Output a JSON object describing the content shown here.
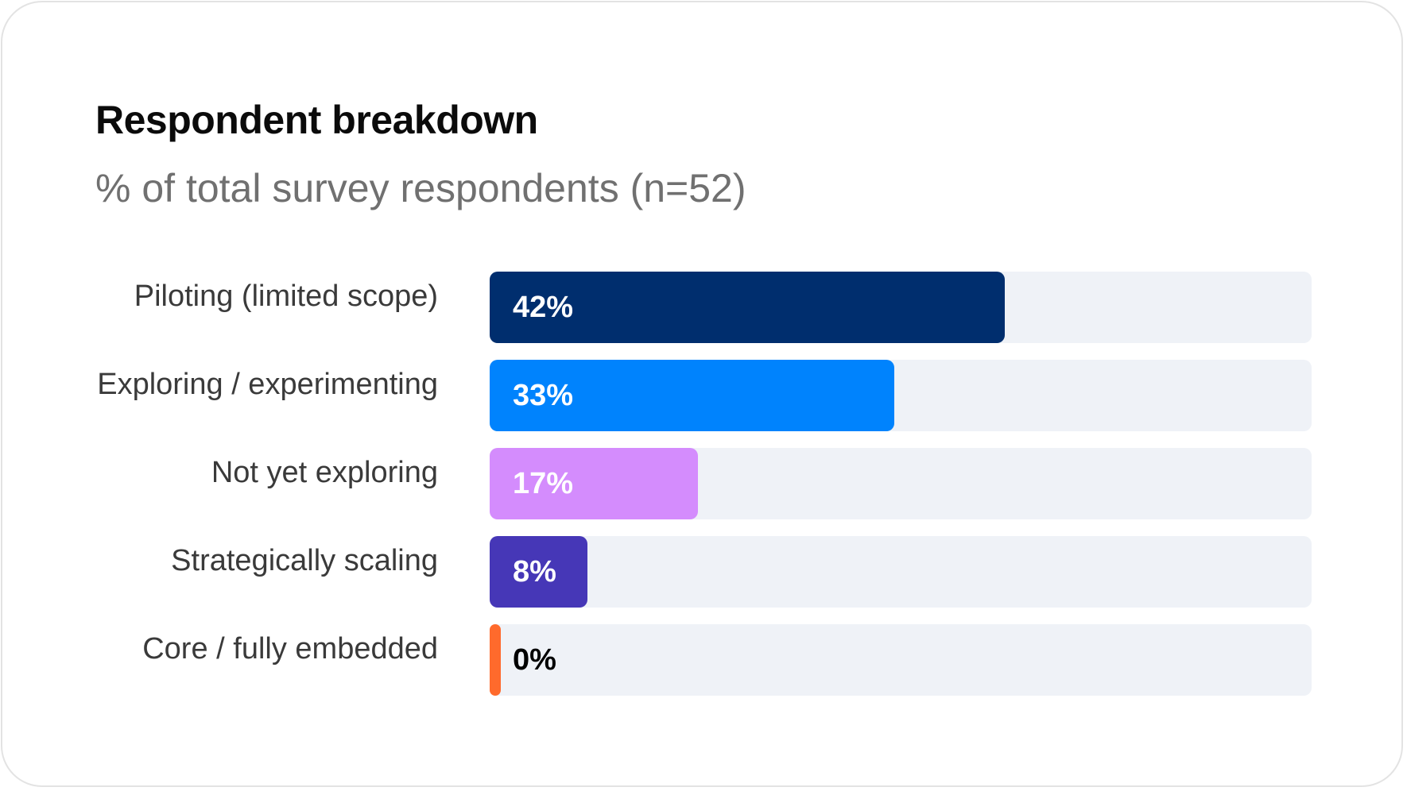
{
  "title": "Respondent breakdown",
  "subtitle": "% of total survey respondents (n=52)",
  "chart_data": {
    "type": "bar",
    "orientation": "horizontal",
    "title": "Respondent breakdown",
    "subtitle": "% of total survey respondents (n=52)",
    "categories": [
      "Piloting (limited scope)",
      "Exploring / experimenting",
      "Not yet exploring",
      "Strategically scaling",
      "Core / fully embedded"
    ],
    "values": [
      42,
      33,
      17,
      8,
      0
    ],
    "value_labels": [
      "42%",
      "33%",
      "17%",
      "8%",
      "0%"
    ],
    "colors": [
      "#002e6e",
      "#0083fd",
      "#d48cfd",
      "#4637b7",
      "#ff6a2c"
    ],
    "value_label_colors": [
      "#ffffff",
      "#ffffff",
      "#ffffff",
      "#ffffff",
      "#000000"
    ],
    "track_color": "#eff2f7",
    "xlim": [
      0,
      67
    ],
    "grid": false,
    "legend": "none"
  }
}
